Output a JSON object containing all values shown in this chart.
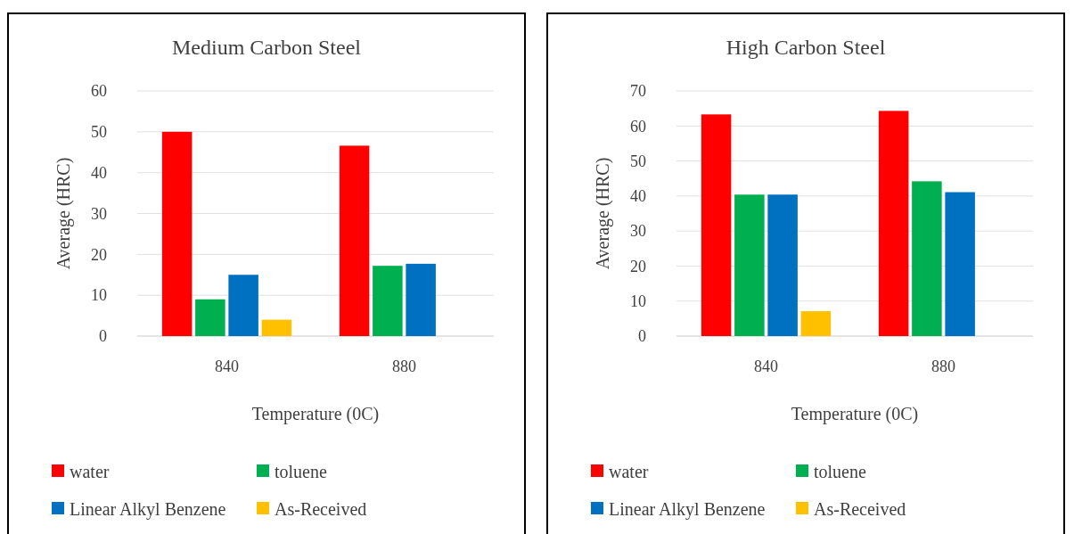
{
  "chart_data": [
    {
      "type": "bar",
      "title": "Medium Carbon Steel",
      "xlabel": "Temperature (0C)",
      "ylabel": "Average (HRC)",
      "categories": [
        "840",
        "880"
      ],
      "series": [
        {
          "name": "water",
          "color": "#ff0000",
          "values": [
            50,
            46.6
          ]
        },
        {
          "name": "toluene",
          "color": "#00b050",
          "values": [
            9,
            17.2
          ]
        },
        {
          "name": "Linear Alkyl Benzene",
          "color": "#0070c0",
          "values": [
            15,
            17.7
          ]
        },
        {
          "name": "As-Received",
          "color": "#ffc000",
          "values": [
            4,
            null
          ]
        }
      ],
      "ylim": [
        0,
        60
      ],
      "yticks": [
        0,
        10,
        20,
        30,
        40,
        50,
        60
      ],
      "grid": "y",
      "legend": "bottom"
    },
    {
      "type": "bar",
      "title": "High Carbon Steel",
      "xlabel": "Temperature (0C)",
      "ylabel": "Average (HRC)",
      "categories": [
        "840",
        "880"
      ],
      "series": [
        {
          "name": "water",
          "color": "#ff0000",
          "values": [
            63.3,
            64.3
          ]
        },
        {
          "name": "toluene",
          "color": "#00b050",
          "values": [
            40.4,
            44.2
          ]
        },
        {
          "name": "Linear Alkyl Benzene",
          "color": "#0070c0",
          "values": [
            40.4,
            41.1
          ]
        },
        {
          "name": "As-Received",
          "color": "#ffc000",
          "values": [
            7.1,
            null
          ]
        }
      ],
      "ylim": [
        0,
        70
      ],
      "yticks": [
        0,
        10,
        20,
        30,
        40,
        50,
        60,
        70
      ],
      "grid": "y",
      "legend": "bottom"
    }
  ]
}
